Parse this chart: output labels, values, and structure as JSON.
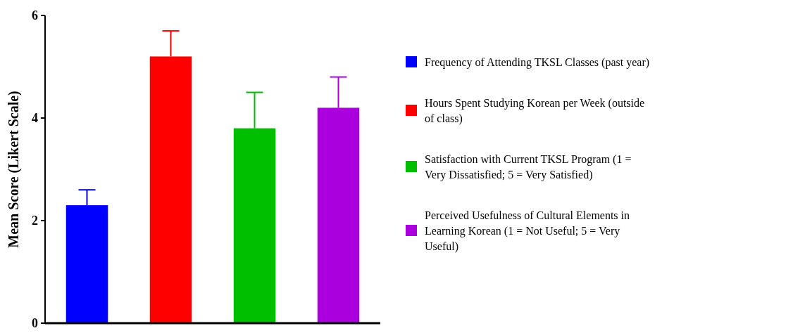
{
  "chart_data": {
    "type": "bar",
    "ylabel": "Mean Score (Likert Scale)",
    "categories": [
      null,
      null,
      null,
      null
    ],
    "series": [
      {
        "name": "Frequency of Attending TKSL Classes (past year)",
        "color": "#0000ff",
        "values": [
          2.3,
          null,
          null,
          null
        ],
        "errors": [
          [
            2.3,
            2.6
          ],
          null,
          null,
          null
        ]
      },
      {
        "name": "Hours Spent Studying Korean per Week (outside of class)",
        "color": "#ff0000",
        "values": [
          null,
          5.2,
          null,
          null
        ],
        "errors": [
          null,
          [
            5.2,
            5.7
          ],
          null,
          null
        ]
      },
      {
        "name": "Satisfaction with Current TKSL Program (1 = Very Dissatisfied; 5 = Very Satisfied)",
        "color": "#00bf00",
        "values": [
          null,
          null,
          3.8,
          null
        ],
        "errors": [
          null,
          null,
          [
            3.8,
            4.5
          ],
          null
        ]
      },
      {
        "name": "Perceived Usefulness of Cultural Elements in Learning Korean (1 = Not Useful; 5 = Very Useful)",
        "color": "#aa00dd",
        "values": [
          null,
          null,
          null,
          4.2
        ],
        "errors": [
          null,
          null,
          null,
          [
            4.2,
            4.8
          ]
        ]
      }
    ],
    "ylim": [
      0,
      6
    ],
    "yticks": [
      0,
      2,
      4,
      6
    ],
    "legend": "right"
  }
}
